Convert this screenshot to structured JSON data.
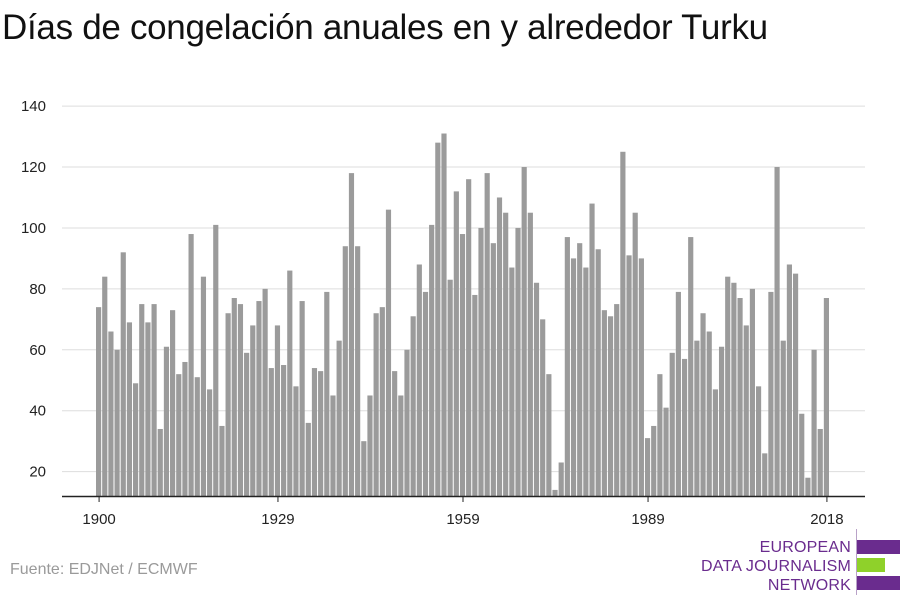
{
  "title": "Días de congelación anuales en y alrededor Turku",
  "source": "Fuente: EDJNet / ECMWF",
  "logo": {
    "lines": [
      "EUROPEAN",
      "DATA JOURNALISM",
      "NETWORK"
    ],
    "colors": {
      "text": "#6a2c8e",
      "bar_purple": "#6a2c8e",
      "bar_green": "#8fd12a"
    }
  },
  "chart_data": {
    "type": "bar",
    "title": "Días de congelación anuales en y alrededor Turku",
    "xlabel": "",
    "ylabel": "",
    "x_start": 1900,
    "x_end": 2018,
    "x_ticks": [
      1900,
      1929,
      1959,
      1989,
      2018
    ],
    "y_ticks": [
      20,
      40,
      60,
      80,
      100,
      120,
      140
    ],
    "ylim": [
      12,
      142
    ],
    "grid": true,
    "bar_color": "#9b9b9b",
    "values": [
      74,
      84,
      66,
      60,
      92,
      69,
      49,
      75,
      69,
      75,
      34,
      61,
      73,
      52,
      56,
      98,
      51,
      84,
      47,
      101,
      35,
      72,
      77,
      75,
      59,
      68,
      76,
      80,
      54,
      68,
      55,
      86,
      48,
      76,
      36,
      54,
      53,
      79,
      45,
      63,
      94,
      118,
      94,
      30,
      45,
      72,
      74,
      106,
      53,
      45,
      60,
      71,
      88,
      79,
      101,
      128,
      131,
      83,
      112,
      98,
      116,
      78,
      100,
      118,
      95,
      110,
      105,
      87,
      100,
      120,
      105,
      82,
      70,
      52,
      14,
      23,
      97,
      90,
      95,
      87,
      108,
      93,
      73,
      71,
      75,
      125,
      91,
      105,
      90,
      31,
      35,
      52,
      41,
      59,
      79,
      57,
      97,
      63,
      72,
      66,
      47,
      61,
      84,
      82,
      77,
      68,
      80,
      48,
      26,
      79,
      120,
      63,
      88,
      85,
      39,
      18,
      60,
      34,
      77
    ]
  }
}
